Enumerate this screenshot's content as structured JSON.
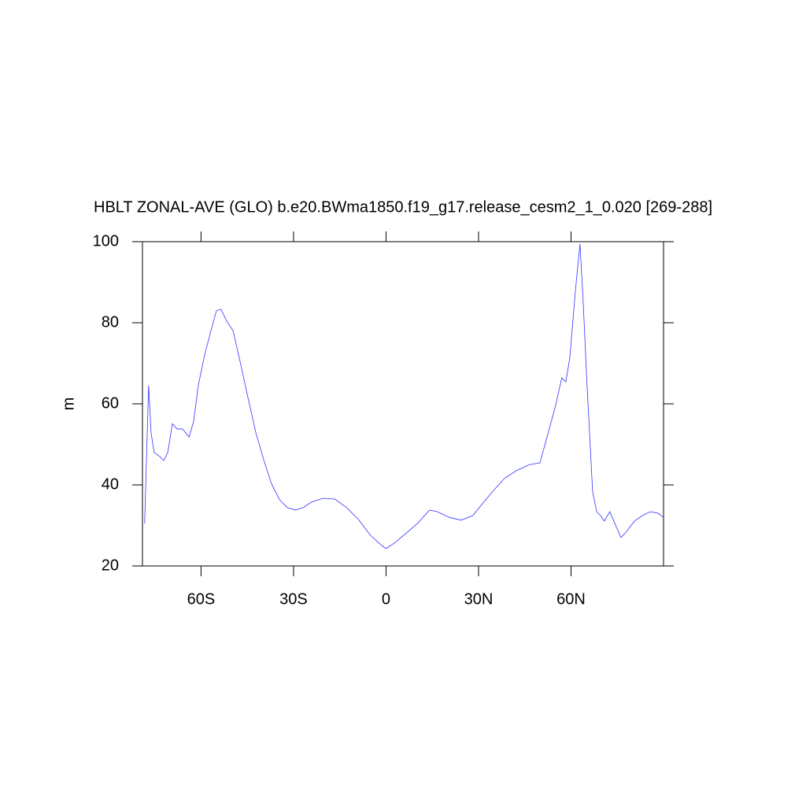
{
  "chart_data": {
    "type": "line",
    "title": "HBLT ZONAL-AVE (GLO) b.e20.BWma1850.f19_g17.release_cesm2_1_0.020 [269-288]",
    "y_label": "m",
    "xlim": [
      -79,
      90
    ],
    "ylim": [
      20,
      100
    ],
    "xticks": [
      {
        "value": -60,
        "label": "60S"
      },
      {
        "value": -30,
        "label": "30S"
      },
      0,
      {
        "value": 30,
        "label": "30N"
      },
      {
        "value": 60,
        "label": "60N"
      }
    ],
    "yticks": [
      20,
      40,
      60,
      80,
      100
    ],
    "series": [
      {
        "color": "#3333ff",
        "x": [
          -78.3,
          -77.0,
          -76.2,
          -75.2,
          -73.4,
          -72.1,
          -70.8,
          -69.3,
          -67.8,
          -66.0,
          -63.9,
          -62.4,
          -60.9,
          -58.8,
          -56.8,
          -55.0,
          -53.5,
          -51.7,
          -49.6,
          -47.3,
          -44.8,
          -42.2,
          -39.6,
          -37.1,
          -34.5,
          -32.0,
          -29.4,
          -26.9,
          -24.3,
          -20.5,
          -16.6,
          -12.8,
          -9.0,
          -5.1,
          -1.3,
          0,
          2.6,
          6.4,
          10.2,
          14.1,
          16.6,
          20.5,
          24.3,
          28.1,
          31.2,
          34.5,
          38.4,
          42.2,
          46.5,
          49.9,
          51.9,
          55.0,
          57.0,
          58.3,
          59.6,
          61.4,
          62.9,
          63.9,
          65.2,
          67.0,
          68.3,
          69.6,
          70.8,
          72.6,
          74.2,
          76.2,
          78.0,
          80.6,
          83.1,
          85.7,
          88.2,
          90.0
        ],
        "values": [
          30.5,
          64.5,
          52.8,
          48,
          47,
          46,
          48,
          55.1,
          53.8,
          53.8,
          51.8,
          55.7,
          64.5,
          72.2,
          78,
          83,
          83.3,
          80.4,
          78,
          70.3,
          61.6,
          52.8,
          46,
          40.2,
          36.3,
          34.4,
          33.8,
          34.4,
          35.7,
          36.7,
          36.5,
          34.4,
          31.5,
          27.6,
          25,
          24.3,
          25.6,
          28,
          30.5,
          33.8,
          33.4,
          32,
          31.3,
          32.4,
          35.3,
          38.3,
          41.6,
          43.5,
          45,
          45.4,
          50.9,
          59.6,
          66.4,
          65.4,
          71.3,
          87.8,
          99.4,
          85.8,
          64.5,
          38.3,
          33.4,
          32.4,
          31.1,
          33.4,
          30.5,
          27,
          28.5,
          31.1,
          32.4,
          33.4,
          33,
          32
        ]
      }
    ]
  }
}
